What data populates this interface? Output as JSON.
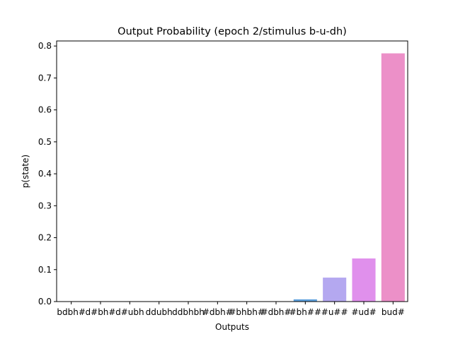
{
  "chart_data": {
    "type": "bar",
    "title": "Output Probability (epoch 2/stimulus b-u-dh)",
    "xlabel": "Outputs",
    "ylabel": "p(state)",
    "ylim": [
      0,
      0.8158
    ],
    "yticks": [
      "0.0",
      "0.1",
      "0.2",
      "0.3",
      "0.4",
      "0.5",
      "0.6",
      "0.7",
      "0.8"
    ],
    "grid": false,
    "categories": [
      "bdbh#",
      "d#bh#",
      "d#ubh",
      "ddubh",
      "ddbhbh",
      "#dbh#",
      "#bhbh#",
      "#dbh#",
      "#bh##",
      "#u##",
      "#ud#",
      "bud#"
    ],
    "values": [
      0.0,
      0.0,
      0.0,
      0.0,
      0.0,
      0.0,
      0.0,
      0.0,
      0.007,
      0.075,
      0.135,
      0.777
    ],
    "colors": [
      "#f0a0a0",
      "#e8a888",
      "#d9b070",
      "#c0b860",
      "#a8c060",
      "#78c878",
      "#60c8a8",
      "#60c0c8",
      "#5da0dc",
      "#b4a8f0",
      "#e090ec",
      "#ec90c8"
    ]
  }
}
